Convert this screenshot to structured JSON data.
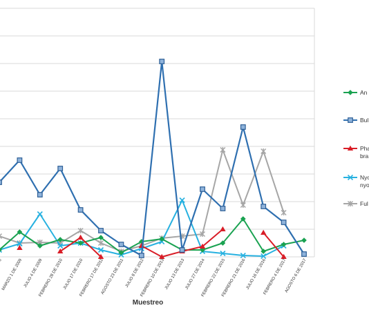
{
  "chart_data": {
    "type": "line",
    "title": "",
    "xlabel": "Muestreo",
    "ylabel": "",
    "ylim": [
      0,
      360
    ],
    "grid": true,
    "legend_position": "right",
    "categories": [
      "2008",
      "MARZO 1 DE 2009",
      "JULIO 4 DE 2009",
      "FEBRERO 28 DE 2010",
      "JULIO 17 DE 2010",
      "FEBRERO 17 DE 2011",
      "AGOSTO 23 DE 2011",
      "JULIO 8 DE 2012",
      "FEBRERO 10 DE 2013",
      "JULIO 13 DE 2013",
      "JULIO 27 DE 2014",
      "FEBRERO 22 DE 2015",
      "FEBRERO 21 DE 2016",
      "JULIO 16 DE 2016",
      "FEBRERO 4 DE 2017",
      "AGOSTO 6 DE 2017"
    ],
    "series": [
      {
        "name": "An",
        "color": "#1aa251",
        "marker": "diamond",
        "values": [
          10,
          36,
          16,
          25,
          20,
          28,
          6,
          22,
          26,
          10,
          10,
          20,
          55,
          8,
          18,
          24
        ]
      },
      {
        "name": "Bul",
        "color": "#2e6fb0",
        "marker": "square",
        "values": [
          108,
          140,
          90,
          128,
          68,
          38,
          18,
          2,
          283,
          10,
          98,
          70,
          188,
          73,
          50,
          4
        ]
      },
      {
        "name": "Pha bra",
        "color": "#d91d27",
        "marker": "triangle",
        "values": [
          null,
          13,
          null,
          8,
          28,
          0,
          null,
          16,
          0,
          8,
          15,
          40,
          null,
          35,
          0,
          null
        ]
      },
      {
        "name": "Nyo nyo",
        "color": "#27b1e0",
        "marker": "x",
        "values": [
          10,
          19,
          62,
          16,
          20,
          10,
          3,
          12,
          22,
          82,
          8,
          5,
          2,
          1,
          16,
          null
        ]
      },
      {
        "name": "Ful",
        "color": "#a6a6a6",
        "marker": "star",
        "values": [
          30,
          20,
          21,
          20,
          38,
          20,
          8,
          16,
          27,
          30,
          33,
          155,
          75,
          153,
          64,
          null
        ]
      }
    ],
    "x_tick_labels_visible": [
      "2008",
      "MARZO 1 DE 2009",
      "JULIO 4 DE 2009",
      "FEBRERO 28 DE 2010",
      "JULIO 17 DE 2010",
      "FEBRERO 17 DE 2011",
      "AGOSTO 23 DE 2011",
      "JULIO 8 DE 2012",
      "FEBRERO 10 DE 2013",
      "JULIO 13 DE 2013",
      "JULIO 27 DE 2014",
      "FEBRERO 22 DE 2015",
      "FEBRERO 21 DE 2016",
      "JULIO 16 DE 2016",
      "FEBRERO 4 DE 2017",
      "AGOSTO 6 DE 2017"
    ],
    "legend": [
      {
        "series": "An",
        "lines": [
          "An"
        ]
      },
      {
        "series": "Bul",
        "lines": [
          "Bul"
        ]
      },
      {
        "series": "Pha bra",
        "lines": [
          "Pha",
          "bra"
        ]
      },
      {
        "series": "Nyo nyo",
        "lines": [
          "Nyo",
          "nyo"
        ]
      },
      {
        "series": "Ful",
        "lines": [
          "Ful"
        ]
      }
    ]
  }
}
